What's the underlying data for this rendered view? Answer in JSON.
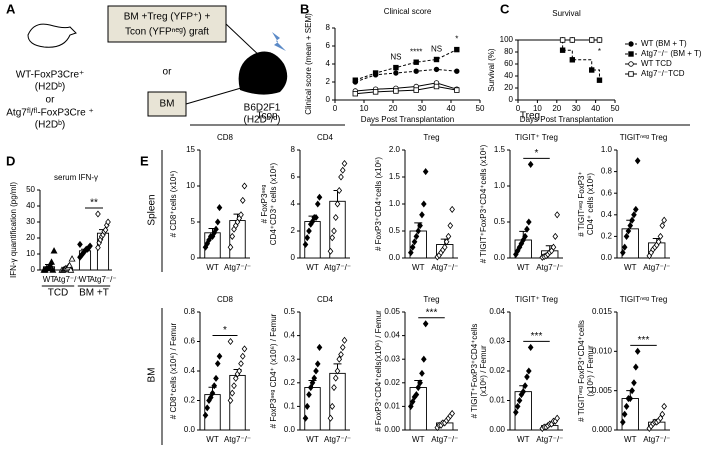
{
  "panels": [
    "A",
    "B",
    "C",
    "D",
    "E"
  ],
  "diagram": {
    "donor1": "WT-FoxP3Cre⁺",
    "donor1_hla": "(H2Dᵇ)",
    "or1": "or",
    "donor2": "Atg7ᶠˡ/ᶠˡ-FoxP3Cre ⁺",
    "donor2_hla": "(H2Dᵇ)",
    "graft": [
      "BM +Treg (YFP⁺) +",
      "Tcon (YFPⁿᵉᵍ) graft"
    ],
    "or2": "or",
    "bm": "BM",
    "recipient": "B6D2F1",
    "recipient_hla": "(H2Dᵇ/ᵈ)"
  },
  "groups": [
    "Tcon",
    "Treg"
  ],
  "rows": [
    "Spleen",
    "BM"
  ],
  "chart_data": [
    {
      "type": "line",
      "title": "Clinical score",
      "xlabel": "Days Post Transplantation",
      "ylabel": "Clinical score (mean + SEM)",
      "x": [
        7,
        14,
        21,
        28,
        35,
        42
      ],
      "xlim": [
        0,
        50
      ],
      "xticks": [
        0,
        10,
        20,
        30,
        40,
        50
      ],
      "ylim": [
        0,
        8
      ],
      "yticks": [
        0,
        2,
        4,
        6,
        8
      ],
      "series": [
        {
          "marker": "circle",
          "dash": true,
          "values": [
            2,
            2.8,
            3,
            3.2,
            3.4,
            3.2
          ]
        },
        {
          "marker": "square",
          "dash": true,
          "values": [
            2.2,
            3,
            3.6,
            4.2,
            4.5,
            5.6
          ]
        },
        {
          "marker": "circle-open",
          "dash": false,
          "values": [
            1,
            1.2,
            1.3,
            1.5,
            1.9,
            1.2
          ]
        },
        {
          "marker": "square-open",
          "dash": false,
          "values": [
            0.7,
            0.9,
            1,
            1.1,
            1.5,
            1.1
          ]
        }
      ],
      "annotations": [
        {
          "text": "NS",
          "x": 21
        },
        {
          "text": "****",
          "x": 28
        },
        {
          "text": "NS",
          "x": 35
        },
        {
          "text": "*",
          "x": 42
        }
      ]
    },
    {
      "type": "step",
      "title": "Survival",
      "xlabel": "Days Post Transplantation",
      "ylabel": "Survival (%)",
      "x": [
        0,
        23,
        28,
        38,
        42
      ],
      "xlim": [
        0,
        50
      ],
      "xticks": [
        0,
        10,
        20,
        30,
        40,
        50
      ],
      "ylim": [
        0,
        100
      ],
      "yticks": [
        0,
        20,
        40,
        60,
        80,
        100
      ],
      "series": [
        {
          "name": "WT (BM + T)",
          "marker": "circle",
          "dash": true,
          "values": [
            100,
            100,
            100,
            100,
            100
          ]
        },
        {
          "name": "Atg7⁻/⁻ (BM + T)",
          "marker": "square",
          "dash": true,
          "values": [
            100,
            83,
            67,
            50,
            33
          ]
        },
        {
          "name": "WT TCD",
          "marker": "circle-open",
          "dash": false,
          "values": [
            100,
            100,
            100,
            100,
            100
          ]
        },
        {
          "name": "Atg7⁻/⁻TCD",
          "marker": "square-open",
          "dash": false,
          "values": [
            100,
            100,
            100,
            100,
            100
          ]
        }
      ],
      "annotations": [
        {
          "text": "*",
          "x": 42
        }
      ]
    },
    {
      "type": "dotbar",
      "title": "serum IFN-γ",
      "ylabel": "IFN-γ quantification (pg/ml)",
      "categories": [
        "WT",
        "Atg7⁻/⁻",
        "WT",
        "Atg7⁻/⁻"
      ],
      "groups": [
        "TCD",
        "BM +T"
      ],
      "markers": [
        "triangle",
        "triangle-open",
        "diamond",
        "diamond-open"
      ],
      "ylim": [
        0,
        50
      ],
      "yticks": [
        0,
        10,
        20,
        30,
        40,
        50
      ],
      "values": [
        2,
        1,
        12,
        23
      ],
      "errors": [
        1.4,
        0.8,
        1,
        2.2
      ],
      "points": [
        [
          0,
          0,
          1,
          1,
          2,
          3,
          5,
          0,
          12
        ],
        [
          0,
          0,
          0.5,
          1,
          1,
          2,
          3,
          0,
          7
        ],
        [
          8,
          9,
          10,
          11,
          12,
          13,
          13,
          14,
          15,
          16
        ],
        [
          14,
          17,
          19,
          21,
          22,
          24,
          25,
          28,
          30,
          35
        ]
      ],
      "annotation": "**"
    },
    {
      "type": "dotbar",
      "title": "CD8",
      "ylabel": [
        "# CD8⁺cells (x10⁶)"
      ],
      "categories": [
        "WT",
        "Atg7⁻/⁻"
      ],
      "markers": [
        "diamond",
        "diamond-open"
      ],
      "ylim": [
        0,
        15
      ],
      "yticks": [
        0,
        5,
        10,
        15
      ],
      "values": [
        3.5,
        5.2
      ],
      "errors": [
        0.6,
        0.9
      ],
      "points": [
        [
          1.5,
          2,
          2.5,
          3,
          3,
          3.5,
          4,
          5,
          7
        ],
        [
          1.5,
          3,
          4,
          4.5,
          5,
          5.5,
          6,
          8,
          10
        ]
      ]
    },
    {
      "type": "dotbar",
      "title": "CD4",
      "ylabel": [
        "# FoxP3ⁿᵉᵍ",
        "CD4⁺CD3⁺ cells (x10⁶)"
      ],
      "categories": [
        "WT",
        "Atg7⁻/⁻"
      ],
      "markers": [
        "diamond",
        "diamond-open"
      ],
      "ylim": [
        0,
        8
      ],
      "yticks": [
        0,
        2,
        4,
        6,
        8
      ],
      "values": [
        2.7,
        4.2
      ],
      "errors": [
        0.4,
        0.8
      ],
      "points": [
        [
          1,
          1.5,
          2,
          2.5,
          2.7,
          3,
          3,
          4,
          4.5
        ],
        [
          0.5,
          1.5,
          2,
          3,
          4,
          5,
          6,
          6.5,
          7
        ]
      ]
    },
    {
      "type": "dotbar",
      "title": "Treg",
      "ylabel": [
        "# FoxP3⁺CD4⁺cells (x10⁶)"
      ],
      "categories": [
        "WT",
        "Atg7⁻/⁻"
      ],
      "markers": [
        "diamond",
        "diamond-open"
      ],
      "ylim": [
        0,
        2
      ],
      "yticks": [
        {
          "value": 0,
          "label": "0.0"
        },
        0.5,
        {
          "value": 1,
          "label": "1.0"
        },
        1.5,
        {
          "value": 2,
          "label": "2.0"
        }
      ],
      "values": [
        0.5,
        0.25
      ],
      "errors": [
        0.15,
        0.1
      ],
      "points": [
        [
          0.1,
          0.2,
          0.3,
          0.4,
          0.5,
          0.6,
          0.8,
          1,
          1.6
        ],
        [
          0.02,
          0.05,
          0.1,
          0.15,
          0.2,
          0.3,
          0.4,
          0.6,
          0.9
        ]
      ]
    },
    {
      "type": "dotbar",
      "title": "TIGIT⁺ Treg",
      "ylabel": [
        "# TIGIT⁺FoxP3⁺CD4⁺cells (x10⁶)"
      ],
      "categories": [
        "WT",
        "Atg7⁻/⁻"
      ],
      "markers": [
        "diamond",
        "diamond-open"
      ],
      "ylim": [
        0,
        1.5
      ],
      "yticks": [
        {
          "value": 0,
          "label": "0.0"
        },
        0.5,
        {
          "value": 1,
          "label": "1.0"
        },
        1.5
      ],
      "values": [
        0.25,
        0.1
      ],
      "errors": [
        0.12,
        0.07
      ],
      "points": [
        [
          0.05,
          0.1,
          0.15,
          0.2,
          0.25,
          0.3,
          0.4,
          0.5,
          1.3
        ],
        [
          0.01,
          0.02,
          0.03,
          0.05,
          0.08,
          0.1,
          0.15,
          0.3,
          0.6
        ]
      ],
      "annotation": "*"
    },
    {
      "type": "dotbar",
      "title": "TIGITⁿᵉᵍ Treg",
      "ylabel": [
        "# TIGITⁿᵉᵍ FoxP3⁺",
        "CD4⁺ cells (x10⁶)"
      ],
      "categories": [
        "WT",
        "Atg7⁻/⁻"
      ],
      "markers": [
        "diamond",
        "diamond-open"
      ],
      "ylim": [
        0,
        1
      ],
      "yticks": [
        {
          "value": 0,
          "label": "0.0"
        },
        0.2,
        0.4,
        0.6,
        0.8,
        {
          "value": 1,
          "label": "1.0"
        }
      ],
      "values": [
        0.27,
        0.14
      ],
      "errors": [
        0.08,
        0.04
      ],
      "points": [
        [
          0.05,
          0.1,
          0.2,
          0.25,
          0.3,
          0.35,
          0.4,
          0.45,
          0.9
        ],
        [
          0.02,
          0.05,
          0.08,
          0.1,
          0.12,
          0.15,
          0.2,
          0.3,
          0.35
        ]
      ]
    },
    {
      "type": "dotbar",
      "title": "CD8",
      "ylabel": [
        "# CD8⁺cells (x10⁶) / Femur"
      ],
      "categories": [
        "WT",
        "Atg7⁻/⁻"
      ],
      "markers": [
        "diamond",
        "diamond-open"
      ],
      "ylim": [
        0,
        0.8
      ],
      "yticks": [
        {
          "value": 0,
          "label": "0.0"
        },
        0.2,
        0.4,
        0.6,
        0.8
      ],
      "values": [
        0.24,
        0.37
      ],
      "errors": [
        0.05,
        0.04
      ],
      "points": [
        [
          0.1,
          0.15,
          0.2,
          0.22,
          0.25,
          0.3,
          0.35,
          0.45,
          0.5
        ],
        [
          0.2,
          0.25,
          0.3,
          0.35,
          0.38,
          0.4,
          0.45,
          0.5,
          0.55,
          0.6
        ]
      ],
      "annotation": "*"
    },
    {
      "type": "dotbar",
      "title": "CD4",
      "ylabel": [
        "# FoxP3ⁿᵉᵍ CD4⁺ (x10⁶) / Femur"
      ],
      "categories": [
        "WT",
        "Atg7⁻/⁻"
      ],
      "markers": [
        "diamond",
        "diamond-open"
      ],
      "ylim": [
        0,
        0.5
      ],
      "yticks": [
        {
          "value": 0,
          "label": "0.0"
        },
        0.1,
        0.2,
        0.3,
        0.4,
        0.5
      ],
      "values": [
        0.18,
        0.24
      ],
      "errors": [
        0.03,
        0.04
      ],
      "points": [
        [
          0.05,
          0.1,
          0.15,
          0.18,
          0.2,
          0.22,
          0.25,
          0.28,
          0.35
        ],
        [
          0.05,
          0.1,
          0.18,
          0.22,
          0.25,
          0.3,
          0.32,
          0.35,
          0.38
        ]
      ]
    },
    {
      "type": "dotbar",
      "title": "Treg",
      "ylabel": [
        "# FoxP3⁺CD4⁺cells(x10⁶) / Femur"
      ],
      "categories": [
        "WT",
        "Atg7⁻/⁻"
      ],
      "markers": [
        "diamond",
        "diamond-open"
      ],
      "ylim": [
        0,
        0.05
      ],
      "yticks": [
        {
          "value": 0,
          "label": "0.00"
        },
        0.01,
        0.02,
        0.03,
        0.04,
        0.05
      ],
      "values": [
        0.018,
        0.003
      ],
      "errors": [
        0.003,
        0.0007
      ],
      "points": [
        [
          0.01,
          0.012,
          0.014,
          0.015,
          0.018,
          0.02,
          0.024,
          0.03,
          0.045
        ],
        [
          0.001,
          0.002,
          0.002,
          0.003,
          0.003,
          0.004,
          0.005,
          0.006,
          0.007
        ]
      ],
      "annotation": "***"
    },
    {
      "type": "dotbar",
      "title": "TIGIT⁺ Treg",
      "ylabel": [
        "# TIGIT⁺FoxP3⁺CD4⁺cells",
        "(x10⁶) / Femur"
      ],
      "categories": [
        "WT",
        "Atg7⁻/⁻"
      ],
      "markers": [
        "diamond",
        "diamond-open"
      ],
      "ylim": [
        0,
        0.04
      ],
      "yticks": [
        {
          "value": 0,
          "label": "0.00"
        },
        0.01,
        0.02,
        0.03,
        0.04
      ],
      "values": [
        0.013,
        0.0015
      ],
      "errors": [
        0.002,
        0.0004
      ],
      "points": [
        [
          0.006,
          0.008,
          0.01,
          0.012,
          0.013,
          0.015,
          0.018,
          0.02,
          0.028
        ],
        [
          0.0005,
          0.001,
          0.001,
          0.0015,
          0.002,
          0.002,
          0.003,
          0.003,
          0.004
        ]
      ],
      "annotation": "***"
    },
    {
      "type": "dotbar",
      "title": "TIGITⁿᵉᵍ Treg",
      "ylabel": [
        "# TIGITⁿᵉᵍ FoxP3⁺CD4⁺cells",
        "(x10⁶) / Femur"
      ],
      "categories": [
        "WT",
        "Atg7⁻/⁻"
      ],
      "markers": [
        "diamond",
        "diamond-open"
      ],
      "ylim": [
        0,
        0.015
      ],
      "yticks": [
        {
          "value": 0,
          "label": "0.000"
        },
        0.005,
        {
          "value": 0.01,
          "label": "0.010"
        },
        0.015
      ],
      "values": [
        0.004,
        0.001
      ],
      "errors": [
        0.001,
        0.0003
      ],
      "points": [
        [
          0.001,
          0.002,
          0.003,
          0.004,
          0.004,
          0.005,
          0.006,
          0.008,
          0.01
        ],
        [
          0.0002,
          0.0005,
          0.0008,
          0.001,
          0.001,
          0.0012,
          0.0015,
          0.002,
          0.003
        ]
      ],
      "annotation": "***"
    }
  ]
}
